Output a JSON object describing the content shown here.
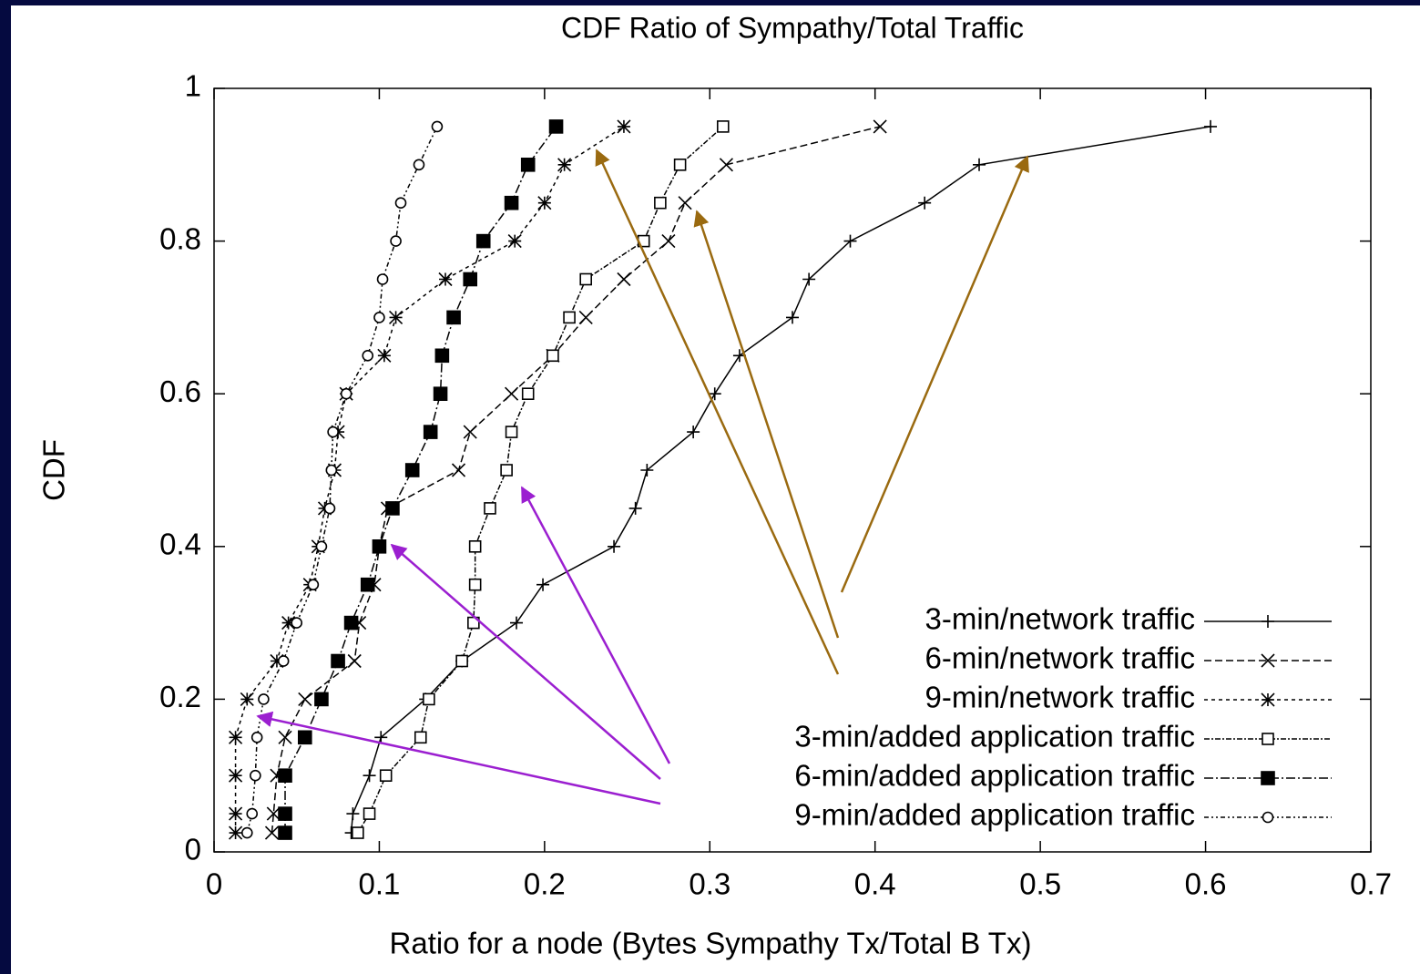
{
  "chart_data": {
    "type": "line",
    "title": "CDF Ratio of Sympathy/Total Traffic",
    "xlabel": "Ratio for a node (Bytes Sympathy Tx/Total B Tx)",
    "ylabel": "CDF",
    "xlim": [
      0,
      0.7
    ],
    "ylim": [
      0,
      1
    ],
    "xticks": [
      0,
      0.1,
      0.2,
      0.3,
      0.4,
      0.5,
      0.6,
      0.7
    ],
    "yticks": [
      0,
      0.2,
      0.4,
      0.6,
      0.8,
      1
    ],
    "legend": "lower right",
    "series": [
      {
        "name": "3-min/network traffic",
        "color": "#000000",
        "marker": "plus",
        "dash": "none",
        "x": [
          0.083,
          0.084,
          0.094,
          0.101,
          0.128,
          0.15,
          0.183,
          0.199,
          0.242,
          0.255,
          0.262,
          0.29,
          0.303,
          0.318,
          0.35,
          0.36,
          0.385,
          0.43,
          0.463,
          0.603
        ],
        "values": [
          0.025,
          0.05,
          0.1,
          0.15,
          0.2,
          0.25,
          0.3,
          0.35,
          0.4,
          0.45,
          0.5,
          0.55,
          0.6,
          0.65,
          0.7,
          0.75,
          0.8,
          0.85,
          0.9,
          0.95
        ]
      },
      {
        "name": "6-min/network traffic",
        "color": "#000000",
        "marker": "cross",
        "dash": "8 4",
        "x": [
          0.035,
          0.036,
          0.038,
          0.043,
          0.055,
          0.085,
          0.088,
          0.097,
          0.1,
          0.105,
          0.148,
          0.155,
          0.18,
          0.205,
          0.225,
          0.248,
          0.275,
          0.285,
          0.31,
          0.403
        ],
        "values": [
          0.025,
          0.05,
          0.1,
          0.15,
          0.2,
          0.25,
          0.3,
          0.35,
          0.4,
          0.45,
          0.5,
          0.55,
          0.6,
          0.65,
          0.7,
          0.75,
          0.8,
          0.85,
          0.9,
          0.95
        ]
      },
      {
        "name": "9-min/network traffic",
        "color": "#000000",
        "marker": "star",
        "dash": "4 4",
        "x": [
          0.013,
          0.013,
          0.013,
          0.013,
          0.02,
          0.038,
          0.045,
          0.058,
          0.063,
          0.067,
          0.073,
          0.075,
          0.08,
          0.103,
          0.11,
          0.14,
          0.182,
          0.2,
          0.212,
          0.248
        ],
        "values": [
          0.025,
          0.05,
          0.1,
          0.15,
          0.2,
          0.25,
          0.3,
          0.35,
          0.4,
          0.45,
          0.5,
          0.55,
          0.6,
          0.65,
          0.7,
          0.75,
          0.8,
          0.85,
          0.9,
          0.95
        ]
      },
      {
        "name": "3-min/added application traffic",
        "color": "#000000",
        "marker": "square",
        "dash": "6 2 2 2",
        "x": [
          0.087,
          0.094,
          0.104,
          0.125,
          0.13,
          0.15,
          0.157,
          0.158,
          0.158,
          0.167,
          0.177,
          0.18,
          0.19,
          0.205,
          0.215,
          0.225,
          0.26,
          0.27,
          0.282,
          0.308
        ],
        "values": [
          0.025,
          0.05,
          0.1,
          0.15,
          0.2,
          0.25,
          0.3,
          0.35,
          0.4,
          0.45,
          0.5,
          0.55,
          0.6,
          0.65,
          0.7,
          0.75,
          0.8,
          0.85,
          0.9,
          0.95
        ]
      },
      {
        "name": "6-min/added application traffic",
        "color": "#000000",
        "marker": "filled-square",
        "dash": "10 3 2 3",
        "x": [
          0.043,
          0.043,
          0.043,
          0.055,
          0.065,
          0.075,
          0.083,
          0.093,
          0.1,
          0.108,
          0.12,
          0.131,
          0.137,
          0.138,
          0.145,
          0.155,
          0.163,
          0.18,
          0.19,
          0.207
        ],
        "values": [
          0.025,
          0.05,
          0.1,
          0.15,
          0.2,
          0.25,
          0.3,
          0.35,
          0.4,
          0.45,
          0.5,
          0.55,
          0.6,
          0.65,
          0.7,
          0.75,
          0.8,
          0.85,
          0.9,
          0.95
        ]
      },
      {
        "name": "9-min/added application traffic",
        "color": "#000000",
        "marker": "circle",
        "dash": "5 3 2 3 2 3",
        "x": [
          0.02,
          0.023,
          0.025,
          0.026,
          0.03,
          0.042,
          0.05,
          0.06,
          0.065,
          0.07,
          0.071,
          0.072,
          0.08,
          0.093,
          0.1,
          0.102,
          0.11,
          0.113,
          0.124,
          0.135
        ],
        "values": [
          0.025,
          0.05,
          0.1,
          0.15,
          0.2,
          0.25,
          0.3,
          0.35,
          0.4,
          0.45,
          0.5,
          0.55,
          0.6,
          0.65,
          0.7,
          0.75,
          0.8,
          0.85,
          0.9,
          0.95
        ]
      }
    ]
  }
}
